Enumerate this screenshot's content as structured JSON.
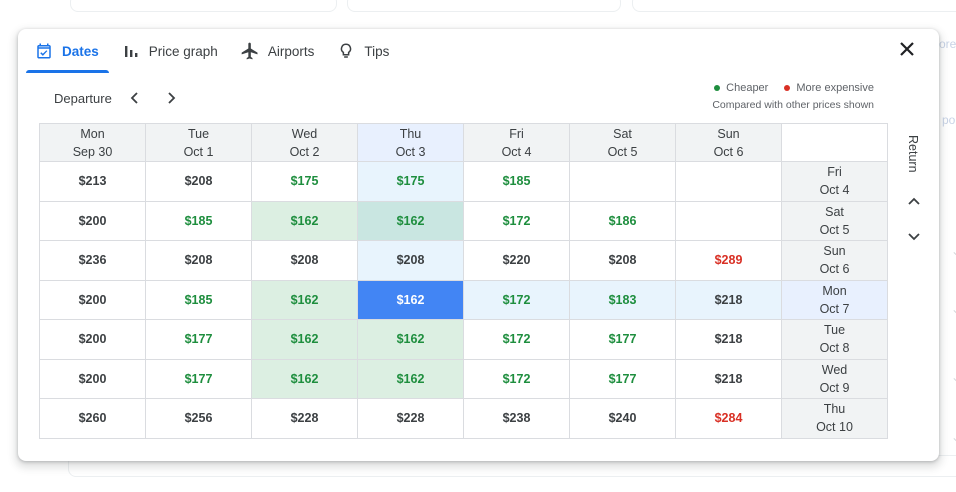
{
  "background": {
    "peek_text_1": "ore",
    "peek_text_2": "po"
  },
  "tabs": [
    {
      "label": "Dates",
      "icon": "calendar-check-icon",
      "active": true
    },
    {
      "label": "Price graph",
      "icon": "bar-chart-icon",
      "active": false
    },
    {
      "label": "Airports",
      "icon": "airplane-icon",
      "active": false
    },
    {
      "label": "Tips",
      "icon": "lightbulb-icon",
      "active": false
    }
  ],
  "departure": {
    "label": "Departure"
  },
  "legend": {
    "cheaper": "Cheaper",
    "more_expensive": "More expensive",
    "note": "Compared with other prices shown",
    "cheaper_color": "#1e8e3e",
    "expensive_color": "#d93025"
  },
  "return_label": "Return",
  "grid": {
    "columns": [
      {
        "day": "Mon",
        "date": "Sep 30"
      },
      {
        "day": "Tue",
        "date": "Oct 1"
      },
      {
        "day": "Wed",
        "date": "Oct 2"
      },
      {
        "day": "Thu",
        "date": "Oct 3"
      },
      {
        "day": "Fri",
        "date": "Oct 4"
      },
      {
        "day": "Sat",
        "date": "Oct 5"
      },
      {
        "day": "Sun",
        "date": "Oct 6"
      }
    ],
    "rows": [
      {
        "day": "Fri",
        "date": "Oct 4",
        "prices": [
          "$213",
          "$208",
          "$175",
          "$175",
          "$185",
          "",
          ""
        ]
      },
      {
        "day": "Sat",
        "date": "Oct 5",
        "prices": [
          "$200",
          "$185",
          "$162",
          "$162",
          "$172",
          "$186",
          ""
        ]
      },
      {
        "day": "Sun",
        "date": "Oct 6",
        "prices": [
          "$236",
          "$208",
          "$208",
          "$208",
          "$220",
          "$208",
          "$289"
        ]
      },
      {
        "day": "Mon",
        "date": "Oct 7",
        "prices": [
          "$200",
          "$185",
          "$162",
          "$162",
          "$172",
          "$183",
          "$218"
        ]
      },
      {
        "day": "Tue",
        "date": "Oct 8",
        "prices": [
          "$200",
          "$177",
          "$162",
          "$162",
          "$172",
          "$177",
          "$218"
        ]
      },
      {
        "day": "Wed",
        "date": "Oct 9",
        "prices": [
          "$200",
          "$177",
          "$162",
          "$162",
          "$172",
          "$177",
          "$218"
        ]
      },
      {
        "day": "Thu",
        "date": "Oct 10",
        "prices": [
          "$260",
          "$256",
          "$228",
          "$228",
          "$238",
          "$240",
          "$284"
        ]
      }
    ]
  },
  "colors": {
    "accent": "#1a73e8",
    "selected": "#4285f4"
  }
}
